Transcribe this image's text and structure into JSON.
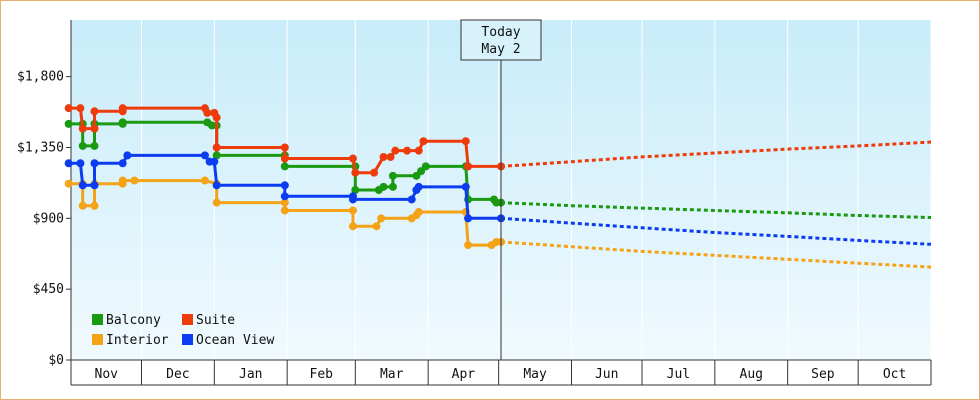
{
  "chart_data": {
    "type": "line",
    "today": {
      "label": "Today",
      "date_label": "May 2",
      "x": "2024-05-02"
    },
    "ylim": [
      0,
      2160
    ],
    "y_ticks": [
      {
        "value": 0,
        "label": "$0"
      },
      {
        "value": 450,
        "label": "$450"
      },
      {
        "value": 900,
        "label": "$900"
      },
      {
        "value": 1350,
        "label": "$1,350"
      },
      {
        "value": 1800,
        "label": "$1,800"
      }
    ],
    "x_range": [
      "2023-11-01",
      "2024-11-01"
    ],
    "months": [
      {
        "label": "Nov",
        "start": "2023-11-01"
      },
      {
        "label": "Dec",
        "start": "2023-12-01"
      },
      {
        "label": "Jan",
        "start": "2024-01-01"
      },
      {
        "label": "Feb",
        "start": "2024-02-01"
      },
      {
        "label": "Mar",
        "start": "2024-03-01"
      },
      {
        "label": "Apr",
        "start": "2024-04-01"
      },
      {
        "label": "May",
        "start": "2024-05-01"
      },
      {
        "label": "Jun",
        "start": "2024-06-01"
      },
      {
        "label": "Jul",
        "start": "2024-07-01"
      },
      {
        "label": "Aug",
        "start": "2024-08-01"
      },
      {
        "label": "Sep",
        "start": "2024-09-01"
      },
      {
        "label": "Oct",
        "start": "2024-10-01"
      }
    ],
    "legend": {
      "placement": "bottom-left"
    },
    "series": [
      {
        "name": "Balcony",
        "color": "#1a9a10",
        "points": [
          [
            "2023-10-31",
            1500
          ],
          [
            "2023-11-06",
            1500
          ],
          [
            "2023-11-06",
            1360
          ],
          [
            "2023-11-11",
            1360
          ],
          [
            "2023-11-11",
            1500
          ],
          [
            "2023-11-23",
            1500
          ],
          [
            "2023-11-23",
            1510
          ],
          [
            "2023-12-29",
            1510
          ],
          [
            "2023-12-31",
            1490
          ],
          [
            "2024-01-02",
            1490
          ],
          [
            "2024-01-02",
            1300
          ],
          [
            "2024-01-31",
            1300
          ],
          [
            "2024-01-31",
            1230
          ],
          [
            "2024-03-01",
            1230
          ],
          [
            "2024-03-01",
            1080
          ],
          [
            "2024-03-11",
            1080
          ],
          [
            "2024-03-13",
            1100
          ],
          [
            "2024-03-17",
            1100
          ],
          [
            "2024-03-17",
            1170
          ],
          [
            "2024-03-27",
            1170
          ],
          [
            "2024-03-29",
            1200
          ],
          [
            "2024-03-31",
            1230
          ],
          [
            "2024-04-17",
            1230
          ],
          [
            "2024-04-18",
            1020
          ],
          [
            "2024-04-29",
            1020
          ],
          [
            "2024-04-30",
            1000
          ],
          [
            "2024-05-02",
            1000
          ]
        ],
        "forecast": [
          [
            "2024-05-02",
            1000
          ],
          [
            "2024-06-01",
            980
          ],
          [
            "2024-07-01",
            965
          ],
          [
            "2024-08-01",
            950
          ],
          [
            "2024-09-01",
            935
          ],
          [
            "2024-10-01",
            918
          ],
          [
            "2024-11-01",
            905
          ]
        ]
      },
      {
        "name": "Suite",
        "color": "#ee3b0c",
        "points": [
          [
            "2023-10-31",
            1600
          ],
          [
            "2023-11-05",
            1600
          ],
          [
            "2023-11-06",
            1470
          ],
          [
            "2023-11-11",
            1470
          ],
          [
            "2023-11-11",
            1580
          ],
          [
            "2023-11-23",
            1580
          ],
          [
            "2023-11-23",
            1600
          ],
          [
            "2023-12-28",
            1600
          ],
          [
            "2023-12-29",
            1570
          ],
          [
            "2024-01-01",
            1570
          ],
          [
            "2024-01-02",
            1540
          ],
          [
            "2024-01-02",
            1350
          ],
          [
            "2024-01-31",
            1350
          ],
          [
            "2024-01-31",
            1280
          ],
          [
            "2024-02-29",
            1280
          ],
          [
            "2024-03-01",
            1190
          ],
          [
            "2024-03-09",
            1190
          ],
          [
            "2024-03-13",
            1290
          ],
          [
            "2024-03-16",
            1290
          ],
          [
            "2024-03-18",
            1330
          ],
          [
            "2024-03-23",
            1330
          ],
          [
            "2024-03-28",
            1330
          ],
          [
            "2024-03-30",
            1390
          ],
          [
            "2024-04-17",
            1390
          ],
          [
            "2024-04-18",
            1230
          ],
          [
            "2024-05-02",
            1230
          ]
        ],
        "forecast": [
          [
            "2024-05-02",
            1230
          ],
          [
            "2024-06-01",
            1260
          ],
          [
            "2024-07-01",
            1290
          ],
          [
            "2024-08-01",
            1315
          ],
          [
            "2024-09-01",
            1340
          ],
          [
            "2024-10-01",
            1360
          ],
          [
            "2024-11-01",
            1385
          ]
        ]
      },
      {
        "name": "Interior",
        "color": "#f5a316",
        "points": [
          [
            "2023-10-31",
            1120
          ],
          [
            "2023-11-06",
            1120
          ],
          [
            "2023-11-06",
            980
          ],
          [
            "2023-11-11",
            980
          ],
          [
            "2023-11-11",
            1120
          ],
          [
            "2023-11-23",
            1120
          ],
          [
            "2023-11-23",
            1140
          ],
          [
            "2023-11-28",
            1140
          ],
          [
            "2023-12-28",
            1140
          ],
          [
            "2024-01-02",
            1120
          ],
          [
            "2024-01-02",
            1000
          ],
          [
            "2024-01-31",
            1000
          ],
          [
            "2024-01-31",
            950
          ],
          [
            "2024-02-29",
            950
          ],
          [
            "2024-02-29",
            850
          ],
          [
            "2024-03-10",
            850
          ],
          [
            "2024-03-12",
            900
          ],
          [
            "2024-03-25",
            900
          ],
          [
            "2024-03-27",
            920
          ],
          [
            "2024-03-28",
            940
          ],
          [
            "2024-04-17",
            940
          ],
          [
            "2024-04-18",
            730
          ],
          [
            "2024-04-28",
            730
          ],
          [
            "2024-04-30",
            750
          ],
          [
            "2024-05-02",
            750
          ]
        ],
        "forecast": [
          [
            "2024-05-02",
            750
          ],
          [
            "2024-06-01",
            720
          ],
          [
            "2024-07-01",
            690
          ],
          [
            "2024-08-01",
            665
          ],
          [
            "2024-09-01",
            640
          ],
          [
            "2024-10-01",
            615
          ],
          [
            "2024-11-01",
            590
          ]
        ]
      },
      {
        "name": "Ocean View",
        "color": "#0b3cf0",
        "points": [
          [
            "2023-10-31",
            1250
          ],
          [
            "2023-11-05",
            1250
          ],
          [
            "2023-11-06",
            1110
          ],
          [
            "2023-11-11",
            1110
          ],
          [
            "2023-11-11",
            1250
          ],
          [
            "2023-11-23",
            1250
          ],
          [
            "2023-11-25",
            1300
          ],
          [
            "2023-12-28",
            1300
          ],
          [
            "2023-12-30",
            1260
          ],
          [
            "2024-01-01",
            1260
          ],
          [
            "2024-01-02",
            1110
          ],
          [
            "2024-01-31",
            1110
          ],
          [
            "2024-01-31",
            1040
          ],
          [
            "2024-02-29",
            1040
          ],
          [
            "2024-02-29",
            1020
          ],
          [
            "2024-03-25",
            1020
          ],
          [
            "2024-03-27",
            1080
          ],
          [
            "2024-03-28",
            1100
          ],
          [
            "2024-04-17",
            1100
          ],
          [
            "2024-04-18",
            900
          ],
          [
            "2024-05-02",
            900
          ]
        ],
        "forecast": [
          [
            "2024-05-02",
            900
          ],
          [
            "2024-06-01",
            870
          ],
          [
            "2024-07-01",
            840
          ],
          [
            "2024-08-01",
            810
          ],
          [
            "2024-09-01",
            785
          ],
          [
            "2024-10-01",
            760
          ],
          [
            "2024-11-01",
            735
          ]
        ]
      }
    ]
  }
}
